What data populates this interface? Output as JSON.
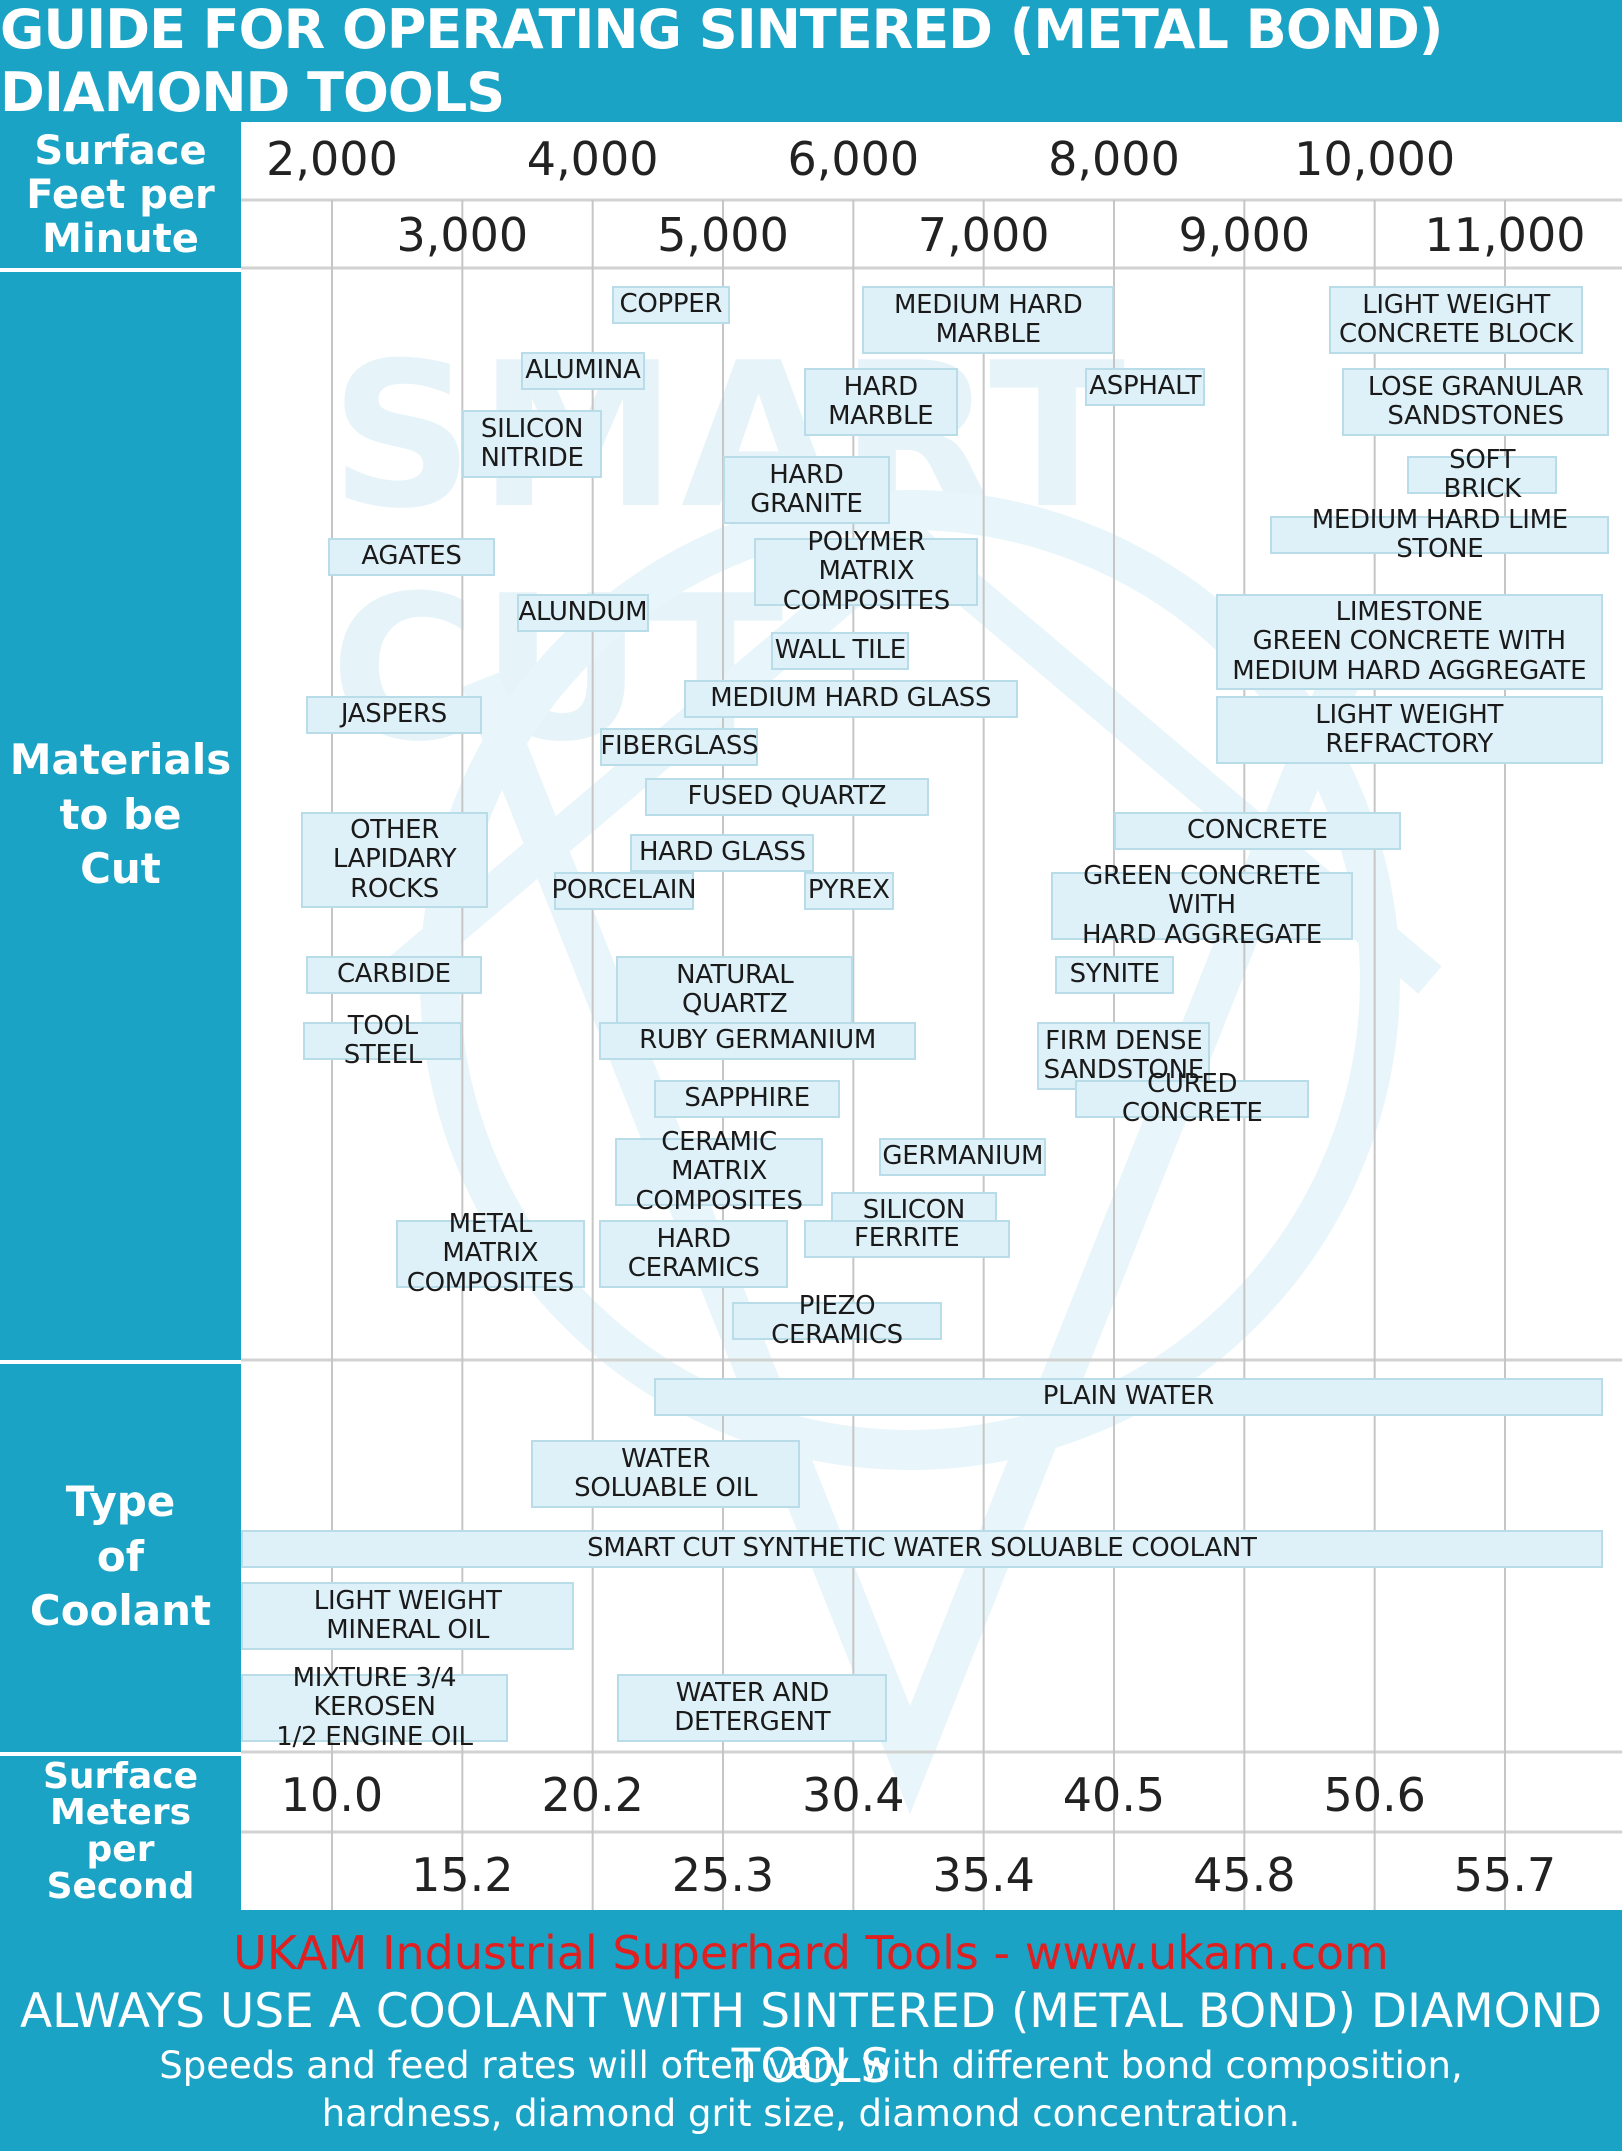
{
  "title": "GUIDE FOR OPERATING SINTERED (METAL BOND) DIAMOND TOOLS",
  "watermark": "SMART CUT",
  "row_labels": {
    "sfpm": "Surface\nFeet per\nMinute",
    "materials": "Materials\nto be\nCut",
    "coolant": "Type\nof\nCoolant",
    "msps": "Surface\nMeters\nper\nSecond"
  },
  "footer": {
    "company": "UKAM Industrial Superhard Tools - www.ukam.com",
    "warning": "ALWAYS USE A COOLANT WITH SINTERED (METAL BOND) DIAMOND TOOLS",
    "note_line1": "Speeds and feed rates will often vary with different bond composition,",
    "note_line2": "hardness, diamond grit size, diamond concentration."
  },
  "colors": {
    "accent": "#1ba3c6",
    "box_fill": "#dff1f8",
    "box_border": "#b8dde9",
    "company_red": "#e02020"
  },
  "chart_data": {
    "type": "range-chart",
    "title": "GUIDE FOR OPERATING SINTERED (METAL BOND) DIAMOND TOOLS",
    "xlabel": "Surface Feet per Minute",
    "xlim": [
      1000,
      12000
    ],
    "sfpm_ticks_top": [
      "2,000",
      "4,000",
      "6,000",
      "8,000",
      "10,000"
    ],
    "sfpm_ticks_bottom": [
      "3,000",
      "5,000",
      "7,000",
      "9,000",
      "11,000"
    ],
    "sfpm_tick_values_top": [
      2000,
      4000,
      6000,
      8000,
      10000
    ],
    "sfpm_tick_values_bottom": [
      3000,
      5000,
      7000,
      9000,
      11000
    ],
    "msps_ticks_top": [
      "10.0",
      "20.2",
      "30.4",
      "40.5",
      "50.6"
    ],
    "msps_ticks_bottom": [
      "15.2",
      "25.3",
      "35.4",
      "45.8",
      "55.7"
    ],
    "gridlines_sfpm": [
      2000,
      3000,
      4000,
      5000,
      6000,
      7000,
      8000,
      9000,
      10000,
      11000
    ],
    "materials": [
      {
        "label": "COPPER",
        "from": 4150,
        "to": 5050,
        "row": 1,
        "lines": 1
      },
      {
        "label": "MEDIUM HARD\nMARBLE",
        "from": 6070,
        "to": 8000,
        "row": 1,
        "lines": 2
      },
      {
        "label": "LIGHT WEIGHT\nCONCRETE BLOCK",
        "from": 9650,
        "to": 11600,
        "row": 1,
        "lines": 2
      },
      {
        "label": "ALUMINA",
        "from": 3450,
        "to": 4400,
        "row": 2,
        "lines": 1
      },
      {
        "label": "HARD\nMARBLE",
        "from": 5620,
        "to": 6800,
        "row": 3,
        "lines": 2
      },
      {
        "label": "ASPHALT",
        "from": 7780,
        "to": 8700,
        "row": 3,
        "lines": 1
      },
      {
        "label": "LOSE GRANULAR\nSANDSTONES",
        "from": 9750,
        "to": 11800,
        "row": 3,
        "lines": 2
      },
      {
        "label": "SILICON\nNITRIDE",
        "from": 3000,
        "to": 4070,
        "row": 4,
        "lines": 2
      },
      {
        "label": "HARD\nGRANITE",
        "from": 5000,
        "to": 6280,
        "row": 5,
        "lines": 2
      },
      {
        "label": "SOFT BRICK",
        "from": 10250,
        "to": 11400,
        "row": 5,
        "lines": 1
      },
      {
        "label": "MEDIUM HARD LIME STONE",
        "from": 9200,
        "to": 11800,
        "row": 6,
        "lines": 1
      },
      {
        "label": "AGATES",
        "from": 1970,
        "to": 3250,
        "row": 7,
        "lines": 1
      },
      {
        "label": "POLYMER MATRIX\nCOMPOSITES",
        "from": 5240,
        "to": 6960,
        "row": 7,
        "lines": 2
      },
      {
        "label": "ALUNDUM",
        "from": 3420,
        "to": 4430,
        "row": 8,
        "lines": 1
      },
      {
        "label": "LIMESTONE\nGREEN CONCRETE WITH\nMEDIUM HARD AGGREGATE",
        "from": 8780,
        "to": 11750,
        "row": 8,
        "lines": 3
      },
      {
        "label": "WALL TILE",
        "from": 5370,
        "to": 6430,
        "row": 9,
        "lines": 1
      },
      {
        "label": "MEDIUM HARD GLASS",
        "from": 4700,
        "to": 7260,
        "row": 10,
        "lines": 1
      },
      {
        "label": "JASPERS",
        "from": 1800,
        "to": 3150,
        "row": 11,
        "lines": 1
      },
      {
        "label": "LIGHT WEIGHT\nREFRACTORY",
        "from": 8780,
        "to": 11750,
        "row": 11,
        "lines": 2
      },
      {
        "label": "FIBERGLASS",
        "from": 4060,
        "to": 5270,
        "row": 12,
        "lines": 1
      },
      {
        "label": "FUSED QUARTZ",
        "from": 4400,
        "to": 6580,
        "row": 13,
        "lines": 1
      },
      {
        "label": "OTHER\nLAPIDARY\nROCKS",
        "from": 1760,
        "to": 3200,
        "row": 14,
        "lines": 3
      },
      {
        "label": "CONCRETE",
        "from": 8000,
        "to": 10200,
        "row": 14,
        "lines": 1
      },
      {
        "label": "HARD GLASS",
        "from": 4290,
        "to": 5700,
        "row": 15,
        "lines": 1
      },
      {
        "label": "PORCELAIN",
        "from": 3700,
        "to": 4780,
        "row": 16,
        "lines": 1
      },
      {
        "label": "PYREX",
        "from": 5620,
        "to": 6310,
        "row": 16,
        "lines": 1
      },
      {
        "label": "GREEN CONCRETE WITH\nHARD AGGREGATE",
        "from": 7520,
        "to": 9830,
        "row": 16,
        "lines": 2
      },
      {
        "label": "CARBIDE",
        "from": 1800,
        "to": 3150,
        "row": 17,
        "lines": 1
      },
      {
        "label": "NATURAL\nQUARTZ",
        "from": 4180,
        "to": 6000,
        "row": 17,
        "lines": 2
      },
      {
        "label": "SYNITE",
        "from": 7550,
        "to": 8460,
        "row": 17,
        "lines": 1
      },
      {
        "label": "TOOL STEEL",
        "from": 1780,
        "to": 3000,
        "row": 18,
        "lines": 1
      },
      {
        "label": "RUBY GERMANIUM",
        "from": 4050,
        "to": 6480,
        "row": 18,
        "lines": 1
      },
      {
        "label": "FIRM DENSE\nSANDSTONE",
        "from": 7410,
        "to": 8740,
        "row": 18,
        "lines": 2
      },
      {
        "label": "SAPPHIRE",
        "from": 4470,
        "to": 5900,
        "row": 19,
        "lines": 1
      },
      {
        "label": "CURED CONCRETE",
        "from": 7700,
        "to": 9500,
        "row": 19,
        "lines": 1
      },
      {
        "label": "CERAMIC MATRIX\nCOMPOSITES",
        "from": 4170,
        "to": 5770,
        "row": 20,
        "lines": 2
      },
      {
        "label": "GERMANIUM",
        "from": 6200,
        "to": 7480,
        "row": 20,
        "lines": 1
      },
      {
        "label": "SILICON",
        "from": 5830,
        "to": 7100,
        "row": 21,
        "lines": 1
      },
      {
        "label": "METAL MATRIX\nCOMPOSITES",
        "from": 2490,
        "to": 3940,
        "row": 22,
        "lines": 2
      },
      {
        "label": "HARD\nCERAMICS",
        "from": 4050,
        "to": 5500,
        "row": 22,
        "lines": 2
      },
      {
        "label": "FERRITE",
        "from": 5620,
        "to": 7200,
        "row": 22,
        "lines": 1
      },
      {
        "label": "PIEZO CERAMICS",
        "from": 5070,
        "to": 6680,
        "row": 23,
        "lines": 1
      }
    ],
    "coolants": [
      {
        "label": "PLAIN WATER",
        "from": 4470,
        "to": 11750,
        "lines": 1
      },
      {
        "label": "WATER\nSOLUABLE OIL",
        "from": 3530,
        "to": 5590,
        "lines": 2
      },
      {
        "label": "SMART CUT SYNTHETIC WATER SOLUABLE COOLANT",
        "from": 1000,
        "to": 11750,
        "lines": 1
      },
      {
        "label": "LIGHT WEIGHT\nMINERAL OIL",
        "from": 1110,
        "to": 3860,
        "lines": 2
      },
      {
        "label": "MIXTURE 3/4 KEROSEN\n1/2 ENGINE OIL",
        "from": 1110,
        "to": 3350,
        "lines": 2
      },
      {
        "label": "WATER AND\nDETERGENT",
        "from": 4190,
        "to": 6260,
        "lines": 2
      }
    ]
  }
}
